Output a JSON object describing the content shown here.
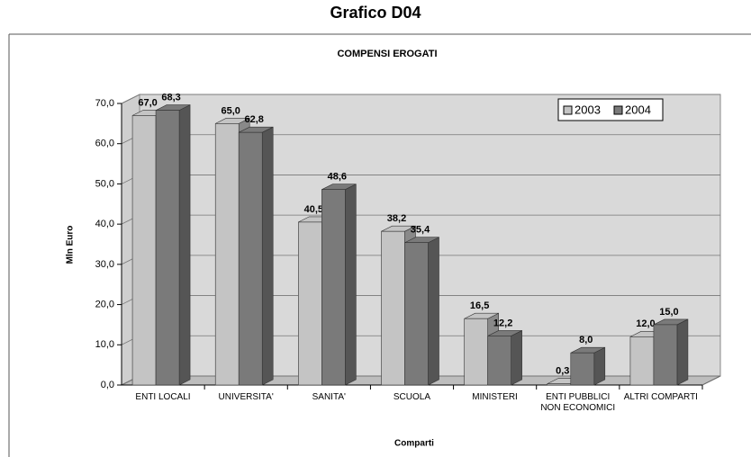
{
  "chart_data": {
    "type": "bar3d",
    "title_top": "Grafico D04",
    "title": "COMPENSI EROGATI",
    "y_label": "Mln Euro",
    "x_label": "Comparti",
    "categories": [
      "ENTI LOCALI",
      "UNIVERSITA'",
      "SANITA'",
      "SCUOLA",
      "MINISTERI",
      "ENTI PUBBLICI NON ECONOMICI",
      "ALTRI COMPARTI"
    ],
    "series": [
      {
        "name": "2003",
        "color": "#c4c4c4",
        "values": [
          67.0,
          65.0,
          40.5,
          38.2,
          16.5,
          0.3,
          12.0
        ],
        "value_labels": [
          "67,0",
          "65,0",
          "40,5",
          "38,2",
          "16,5",
          "0,3",
          "12,0"
        ]
      },
      {
        "name": "2004",
        "color": "#7a7a7a",
        "values": [
          68.3,
          62.8,
          48.6,
          35.4,
          12.2,
          8.0,
          15.0
        ],
        "value_labels": [
          "68,3",
          "62,8",
          "48,6",
          "35,4",
          "12,2",
          "8,0",
          "15,0"
        ]
      }
    ],
    "ylim": [
      0,
      70
    ],
    "yticks": [
      {
        "value": 0,
        "label": "0,0"
      },
      {
        "value": 10,
        "label": "10,0"
      },
      {
        "value": 20,
        "label": "20,0"
      },
      {
        "value": 30,
        "label": "30,0"
      },
      {
        "value": 40,
        "label": "40,0"
      },
      {
        "value": 50,
        "label": "50,0"
      },
      {
        "value": 60,
        "label": "60,0"
      },
      {
        "value": 70,
        "label": "70,0"
      }
    ],
    "grid": true,
    "legend": "top-right"
  }
}
